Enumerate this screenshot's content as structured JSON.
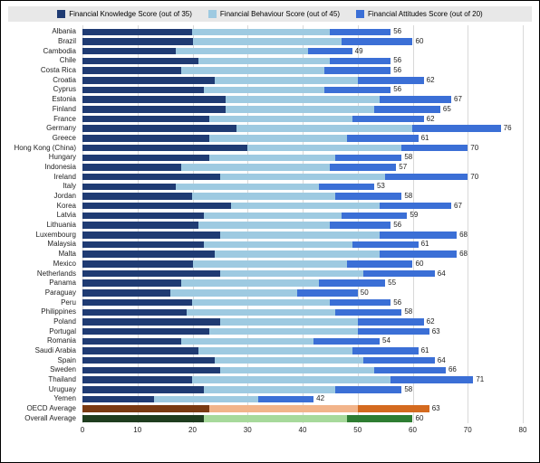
{
  "chart": {
    "type": "stacked-bar-horizontal",
    "xlim": [
      0,
      80
    ],
    "xtick_step": 10,
    "grid_color": "#d9d9d9",
    "background_color": "#ffffff",
    "legend_bg": "#e8e8e8",
    "label_fontsize": 8,
    "value_fontsize": 8,
    "legend": [
      {
        "label": "Financial Knowledge Score (out of 35)",
        "color": "#1f3b73"
      },
      {
        "label": "Financial Behaviour Score (out of 45)",
        "color": "#9ecae1"
      },
      {
        "label": "Financial Attitudes Score (out of 20)",
        "color": "#3b6fd6"
      }
    ],
    "avg_colors": {
      "oecd": [
        "#7a3a12",
        "#f2b48a",
        "#d46a1f"
      ],
      "overall": [
        "#1f3d1f",
        "#a7d99b",
        "#2e7d32"
      ]
    },
    "rows": [
      {
        "label": "Albania",
        "v": [
          20,
          25,
          11
        ],
        "total": 56
      },
      {
        "label": "Brazil",
        "v": [
          20,
          27,
          13
        ],
        "total": 60
      },
      {
        "label": "Cambodia",
        "v": [
          17,
          24,
          8
        ],
        "total": 49
      },
      {
        "label": "Chile",
        "v": [
          21,
          24,
          11
        ],
        "total": 56
      },
      {
        "label": "Costa Rica",
        "v": [
          18,
          26,
          12
        ],
        "total": 56
      },
      {
        "label": "Croatia",
        "v": [
          24,
          26,
          12
        ],
        "total": 62
      },
      {
        "label": "Cyprus",
        "v": [
          22,
          22,
          12
        ],
        "total": 56
      },
      {
        "label": "Estonia",
        "v": [
          26,
          28,
          13
        ],
        "total": 67
      },
      {
        "label": "Finland",
        "v": [
          26,
          27,
          12
        ],
        "total": 65
      },
      {
        "label": "France",
        "v": [
          23,
          26,
          13
        ],
        "total": 62
      },
      {
        "label": "Germany",
        "v": [
          28,
          32,
          16
        ],
        "total": 76
      },
      {
        "label": "Greece",
        "v": [
          23,
          25,
          13
        ],
        "total": 61
      },
      {
        "label": "Hong Kong (China)",
        "v": [
          30,
          28,
          12
        ],
        "total": 70
      },
      {
        "label": "Hungary",
        "v": [
          23,
          23,
          12
        ],
        "total": 58
      },
      {
        "label": "Indonesia",
        "v": [
          18,
          27,
          12
        ],
        "total": 57
      },
      {
        "label": "Ireland",
        "v": [
          25,
          30,
          15
        ],
        "total": 70
      },
      {
        "label": "Italy",
        "v": [
          17,
          26,
          10
        ],
        "total": 53
      },
      {
        "label": "Jordan",
        "v": [
          20,
          26,
          12
        ],
        "total": 58
      },
      {
        "label": "Korea",
        "v": [
          27,
          27,
          13
        ],
        "total": 67
      },
      {
        "label": "Latvia",
        "v": [
          22,
          25,
          12
        ],
        "total": 59
      },
      {
        "label": "Lithuania",
        "v": [
          21,
          24,
          11
        ],
        "total": 56
      },
      {
        "label": "Luxembourg",
        "v": [
          25,
          29,
          14
        ],
        "total": 68
      },
      {
        "label": "Malaysia",
        "v": [
          22,
          27,
          12
        ],
        "total": 61
      },
      {
        "label": "Malta",
        "v": [
          24,
          30,
          14
        ],
        "total": 68
      },
      {
        "label": "Mexico",
        "v": [
          20,
          28,
          12
        ],
        "total": 60
      },
      {
        "label": "Netherlands",
        "v": [
          25,
          26,
          13
        ],
        "total": 64
      },
      {
        "label": "Panama",
        "v": [
          18,
          25,
          12
        ],
        "total": 55
      },
      {
        "label": "Paraguay",
        "v": [
          16,
          23,
          11
        ],
        "total": 50
      },
      {
        "label": "Peru",
        "v": [
          20,
          25,
          11
        ],
        "total": 56
      },
      {
        "label": "Philippines",
        "v": [
          19,
          27,
          12
        ],
        "total": 58
      },
      {
        "label": "Poland",
        "v": [
          25,
          25,
          12
        ],
        "total": 62
      },
      {
        "label": "Portugal",
        "v": [
          23,
          27,
          13
        ],
        "total": 63
      },
      {
        "label": "Romania",
        "v": [
          18,
          24,
          12
        ],
        "total": 54
      },
      {
        "label": "Saudi Arabia",
        "v": [
          21,
          28,
          12
        ],
        "total": 61
      },
      {
        "label": "Spain",
        "v": [
          24,
          27,
          13
        ],
        "total": 64
      },
      {
        "label": "Sweden",
        "v": [
          25,
          28,
          13
        ],
        "total": 66
      },
      {
        "label": "Thailand",
        "v": [
          20,
          36,
          15
        ],
        "total": 71
      },
      {
        "label": "Uruguay",
        "v": [
          22,
          24,
          12
        ],
        "total": 58
      },
      {
        "label": "Yemen",
        "v": [
          13,
          19,
          10
        ],
        "total": 42
      },
      {
        "label": "OECD Average",
        "v": [
          23,
          27,
          13
        ],
        "total": 63,
        "palette": "oecd"
      },
      {
        "label": "Overall Average",
        "v": [
          22,
          26,
          12
        ],
        "total": 60,
        "palette": "overall"
      }
    ]
  }
}
